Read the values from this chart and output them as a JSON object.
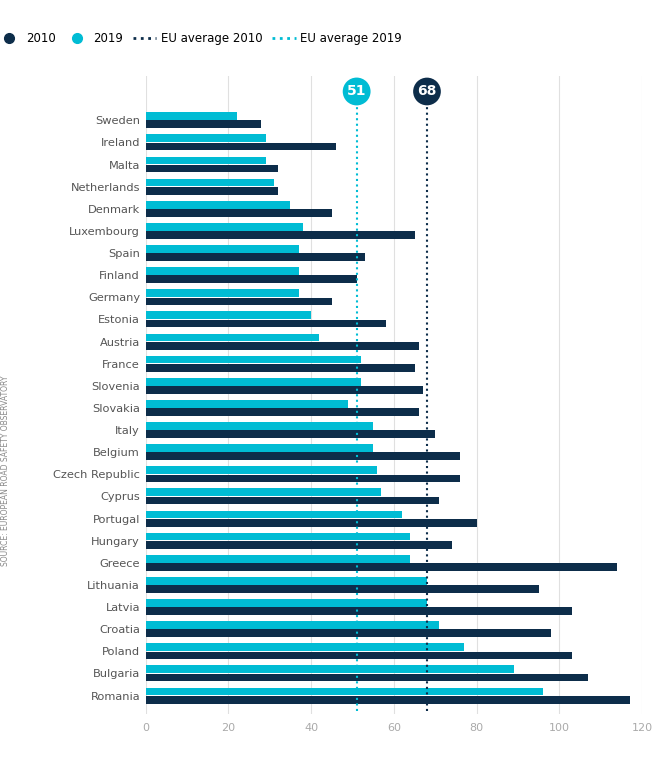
{
  "countries": [
    "Sweden",
    "Ireland",
    "Malta",
    "Netherlands",
    "Denmark",
    "Luxembourg",
    "Spain",
    "Finland",
    "Germany",
    "Estonia",
    "Austria",
    "France",
    "Slovenia",
    "Slovakia",
    "Italy",
    "Belgium",
    "Czech Republic",
    "Cyprus",
    "Portugal",
    "Hungary",
    "Greece",
    "Lithuania",
    "Latvia",
    "Croatia",
    "Poland",
    "Bulgaria",
    "Romania"
  ],
  "val_2010": [
    28,
    46,
    32,
    32,
    45,
    65,
    53,
    51,
    45,
    58,
    66,
    65,
    67,
    66,
    70,
    76,
    76,
    71,
    80,
    74,
    114,
    95,
    103,
    98,
    103,
    107,
    117
  ],
  "val_2019": [
    22,
    29,
    29,
    31,
    35,
    38,
    37,
    37,
    37,
    40,
    42,
    52,
    52,
    49,
    55,
    55,
    56,
    57,
    62,
    64,
    64,
    68,
    68,
    71,
    77,
    89,
    96
  ],
  "eu_avg_2010": 68,
  "eu_avg_2019": 51,
  "color_2010": "#0d2d4a",
  "color_2019": "#00bcd4",
  "xlim": [
    0,
    120
  ],
  "xticks": [
    0,
    20,
    40,
    60,
    80,
    100,
    120
  ],
  "bar_height": 0.35,
  "bar_gap": 0.02,
  "source_text": "SOURCE: EUROPEAN ROAD SAFETY OBSERVATORY",
  "legend_2010": "2010",
  "legend_2019": "2019",
  "legend_eu2010": "EU average 2010",
  "legend_eu2019": "EU average 2019"
}
